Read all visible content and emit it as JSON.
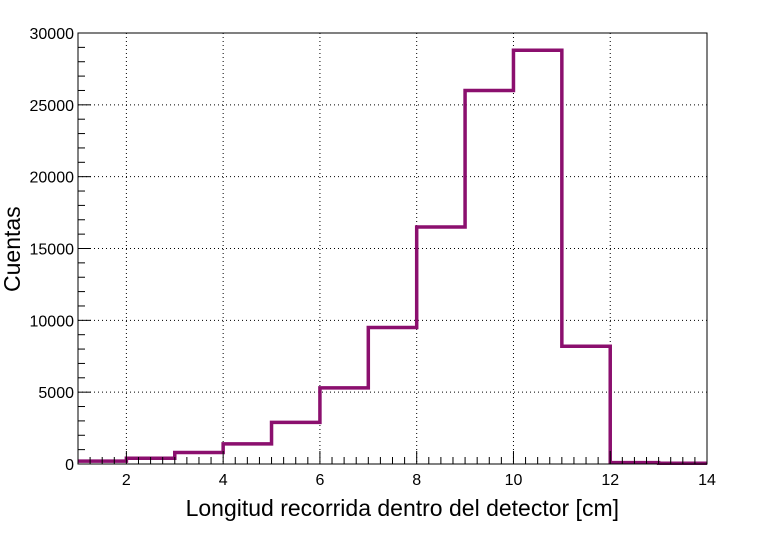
{
  "chart_data": {
    "type": "bar",
    "style": "step-histogram",
    "title": "",
    "xlabel": "Longitud recorrida dentro del detector [cm]",
    "ylabel": "Cuentas",
    "xlim": [
      1,
      14
    ],
    "ylim": [
      0,
      30000
    ],
    "bin_edges": [
      1,
      2,
      3,
      4,
      5,
      6,
      7,
      8,
      9,
      10,
      11,
      12,
      13,
      14
    ],
    "values": [
      200,
      400,
      800,
      1400,
      2900,
      5300,
      9500,
      16500,
      26000,
      28800,
      8200,
      100,
      50
    ],
    "x_ticks": [
      2,
      4,
      6,
      8,
      10,
      12,
      14
    ],
    "y_ticks": [
      0,
      5000,
      10000,
      15000,
      20000,
      25000,
      30000
    ],
    "x_tick_labels": [
      "2",
      "4",
      "6",
      "8",
      "10",
      "12",
      "14"
    ],
    "y_tick_labels": [
      "0",
      "5000",
      "10000",
      "15000",
      "20000",
      "25000",
      "30000"
    ],
    "grid": true,
    "line_color": "#8b0f6e"
  }
}
